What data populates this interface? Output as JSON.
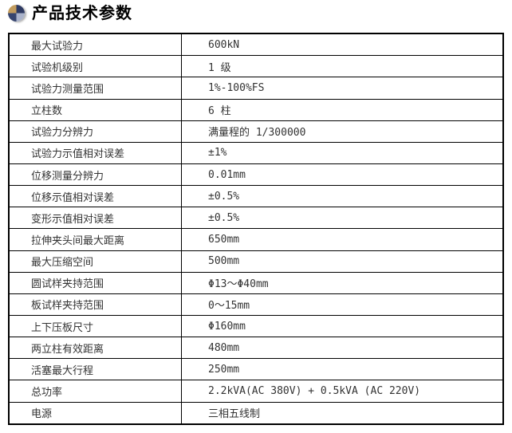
{
  "header": {
    "title": "产品技术参数",
    "icon": "quadrant-sphere-icon",
    "icon_colors": {
      "top_left": "#c29c5e",
      "top_right": "#2e3a62",
      "bottom_left": "#37456f",
      "bottom_right": "#aab3cb"
    }
  },
  "table": {
    "rows": [
      {
        "label": "最大试验力",
        "value": "600kN"
      },
      {
        "label": "试验机级别",
        "value": "1 级"
      },
      {
        "label": "试验力测量范围",
        "value": "1%-100%FS"
      },
      {
        "label": "立柱数",
        "value": "6 柱"
      },
      {
        "label": "试验力分辨力",
        "value": "满量程的 1/300000"
      },
      {
        "label": "试验力示值相对误差",
        "value": "±1%"
      },
      {
        "label": "位移测量分辨力",
        "value": "0.01mm"
      },
      {
        "label": "位移示值相对误差",
        "value": "±0.5%"
      },
      {
        "label": "变形示值相对误差",
        "value": "±0.5%"
      },
      {
        "label": "拉伸夹头间最大距离",
        "value": "650mm"
      },
      {
        "label": "最大压缩空间",
        "value": "500mm"
      },
      {
        "label": "圆试样夹持范围",
        "value": "Φ13～Φ40mm"
      },
      {
        "label": "板试样夹持范围",
        "value": "0～15mm"
      },
      {
        "label": "上下压板尺寸",
        "value": "Φ160mm"
      },
      {
        "label": "两立柱有效距离",
        "value": "480mm"
      },
      {
        "label": "活塞最大行程",
        "value": "250mm"
      },
      {
        "label": "总功率",
        "value": "2.2kVA(AC 380V) + 0.5kVA (AC 220V)"
      },
      {
        "label": "电源",
        "value": "三相五线制"
      }
    ]
  }
}
